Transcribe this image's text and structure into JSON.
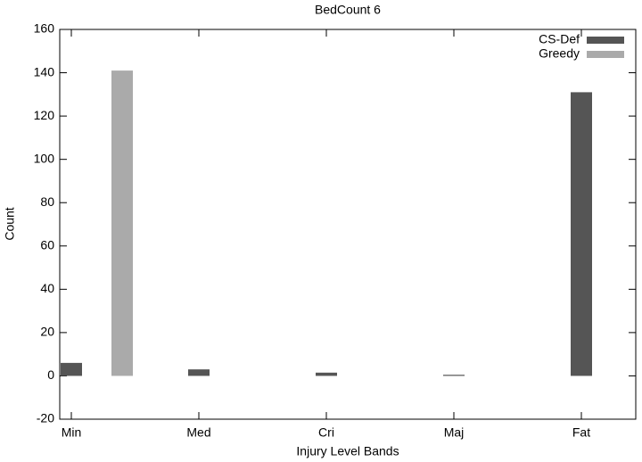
{
  "chart_data": {
    "type": "bar",
    "title": "BedCount 6",
    "x_label": "Injury Level Bands",
    "y_label": "Count",
    "categories": [
      "Min",
      "Med",
      "Cri",
      "Maj",
      "Fat"
    ],
    "series": [
      {
        "name": "CS-Def",
        "color": "#555555",
        "values": [
          6,
          3,
          1.5,
          0.5,
          131
        ]
      },
      {
        "name": "Greedy",
        "color": "#aaaaaa",
        "values": [
          141,
          0,
          0,
          0,
          0
        ]
      }
    ],
    "ylim": [
      -20,
      160
    ],
    "yticks": [
      -20,
      0,
      20,
      40,
      60,
      80,
      100,
      120,
      140,
      160
    ],
    "legend": "upper right"
  }
}
